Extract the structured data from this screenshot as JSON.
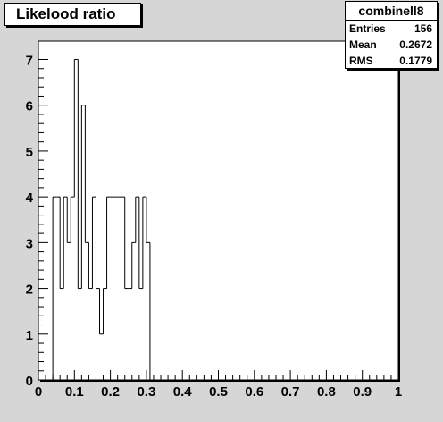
{
  "title": "Likelood ratio",
  "stats": {
    "name": "combinell8",
    "rows": [
      {
        "label": "Entries",
        "value": "156"
      },
      {
        "label": "Mean",
        "value": "0.2672"
      },
      {
        "label": "RMS",
        "value": "0.1779"
      }
    ]
  },
  "chart_data": {
    "type": "bar",
    "style": "step-histogram",
    "xlim": [
      0,
      1
    ],
    "ylim": [
      0,
      7.4
    ],
    "bin_width": 0.01,
    "xticks": [
      "0",
      "0.1",
      "0.2",
      "0.3",
      "0.4",
      "0.5",
      "0.6",
      "0.7",
      "0.8",
      "0.9",
      "1"
    ],
    "yticks": [
      "0",
      "1",
      "2",
      "3",
      "4",
      "5",
      "6",
      "7"
    ],
    "values": [
      0,
      0,
      0,
      0,
      4,
      4,
      2,
      4,
      3,
      4,
      7,
      2,
      6,
      3,
      2,
      4,
      2,
      1,
      2,
      4,
      4,
      4,
      4,
      4,
      2,
      2,
      3,
      4,
      2,
      4,
      3,
      0,
      0,
      0,
      0,
      0,
      0,
      0,
      0,
      0,
      0,
      0,
      0,
      0,
      0,
      0,
      0,
      0,
      0,
      0
    ],
    "colors": {
      "background": "#d6d6d6",
      "plot": "#ffffff",
      "line": "#000000"
    }
  }
}
